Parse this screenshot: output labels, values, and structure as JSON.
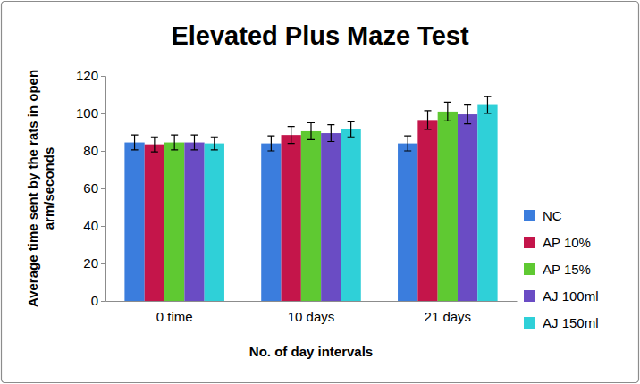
{
  "chart_data": {
    "type": "bar",
    "title": "Elevated Plus Maze Test",
    "x_label": "No. of day intervals",
    "y_label": "Average time sent by the rats in open arm/seconds",
    "categories": [
      "0 time",
      "10 days",
      "21 days"
    ],
    "series": [
      {
        "name": "NC",
        "color": "#3b7ddd",
        "values": [
          84.5,
          84,
          84
        ],
        "errors": [
          4,
          4,
          4
        ]
      },
      {
        "name": "AP 10%",
        "color": "#c4154a",
        "values": [
          83.5,
          88.5,
          96.5
        ],
        "errors": [
          4,
          4.5,
          5
        ]
      },
      {
        "name": "AP 15%",
        "color": "#5fc932",
        "values": [
          84.5,
          90.5,
          101
        ],
        "errors": [
          4,
          4.5,
          5
        ]
      },
      {
        "name": "AJ 100ml",
        "color": "#6a4cc4",
        "values": [
          84.5,
          89.5,
          99.5
        ],
        "errors": [
          4,
          4.5,
          5
        ]
      },
      {
        "name": "AJ 150ml",
        "color": "#2fd0d8",
        "values": [
          84,
          91.5,
          104.5
        ],
        "errors": [
          3.5,
          4,
          4.5
        ]
      }
    ],
    "ylim": [
      0,
      120
    ],
    "yticks": [
      0,
      20,
      40,
      60,
      80,
      100,
      120
    ],
    "grid": false,
    "legend": "right"
  }
}
